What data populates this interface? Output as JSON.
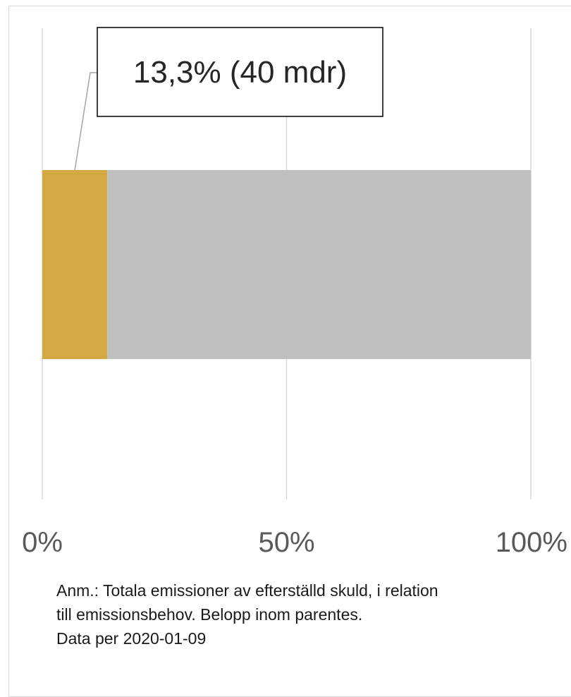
{
  "chart_data": {
    "type": "bar",
    "orientation": "horizontal",
    "stacked": true,
    "xlim": [
      0,
      100
    ],
    "x_ticks": [
      0,
      50,
      100
    ],
    "x_tick_labels": [
      "0%",
      "50%",
      "100%"
    ],
    "grid": "vertical",
    "categories": [
      ""
    ],
    "series": [
      {
        "values": [
          13.3
        ],
        "color": "#D4A843"
      },
      {
        "values": [
          86.7
        ],
        "color": "#BFBFBF"
      }
    ],
    "annotations": [
      {
        "text": "13,3% (40 mdr)",
        "series_index": 0
      }
    ]
  },
  "note": {
    "lines": [
      "Anm.: Totala emissioner av efterställd skuld, i relation",
      "till emissionsbehov. Belopp inom parentes.",
      "Data per 2020-01-09"
    ]
  }
}
